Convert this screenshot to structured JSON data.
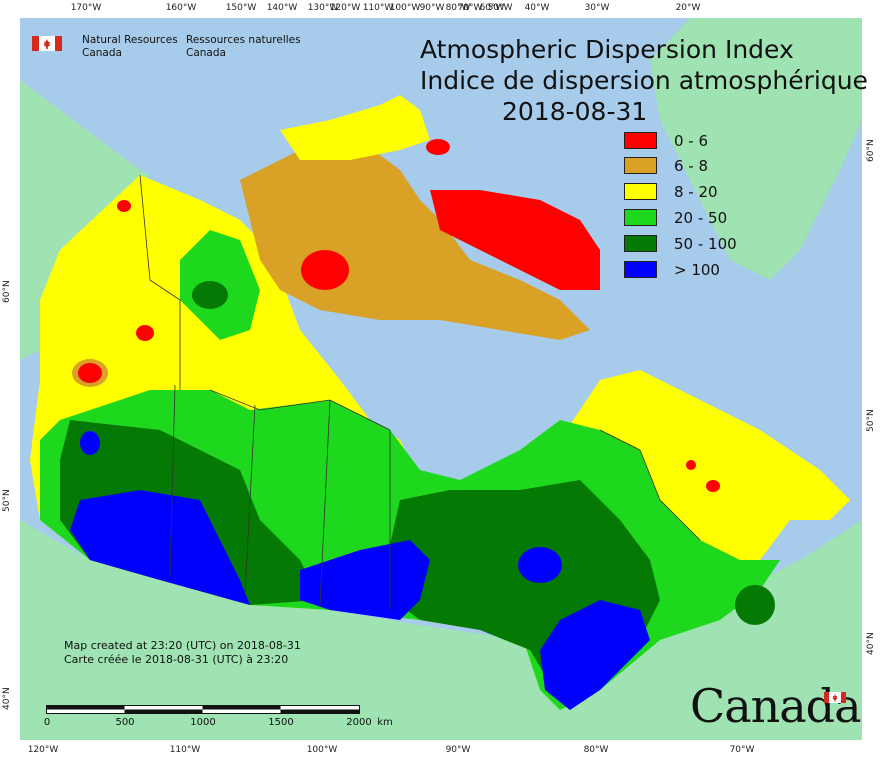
{
  "map": {
    "title_en": "Atmospheric Dispersion Index",
    "title_fr": "Indice de dispersion atmosphérique",
    "date": "2018-08-31",
    "agency_en": [
      "Natural Resources",
      "Canada"
    ],
    "agency_fr": [
      "Ressources naturelles",
      "Canada"
    ],
    "created_en": "Map created at 23:20 (UTC) on 2018-08-31",
    "created_fr": "Carte créée le 2018-08-31 (UTC) à 23:20",
    "wordmark": "Canada",
    "legend": [
      {
        "label": "0 - 6",
        "color": "#ff0000"
      },
      {
        "label": "6 - 8",
        "color": "#d9a126"
      },
      {
        "label": "8 - 20",
        "color": "#ffff00"
      },
      {
        "label": "20 - 50",
        "color": "#1ed81e"
      },
      {
        "label": "50 - 100",
        "color": "#047a04"
      },
      {
        "label": "> 100",
        "color": "#0000ff"
      }
    ],
    "scale": {
      "labels": [
        "0",
        "500",
        "1000",
        "1500",
        "2000"
      ],
      "unit": "km"
    },
    "graticule_top": [
      "170°W",
      "160°W",
      "150°W",
      "140°W",
      "130°W",
      "120°W",
      "110°W",
      "100°W",
      "90°W",
      "80°W",
      "70°W",
      "60°W",
      "50°W",
      "40°W",
      "30°W",
      "20°W"
    ],
    "graticule_bottom": [
      "120°W",
      "110°W",
      "100°W",
      "90°W",
      "80°W",
      "70°W"
    ],
    "graticule_left": [
      "60°N",
      "50°N",
      "40°N"
    ],
    "graticule_right": [
      "60°N",
      "50°N",
      "40°N"
    ],
    "colors": {
      "water": "#a7cbea",
      "foreign_land": "#9fe3b3",
      "border": "#333333"
    }
  }
}
